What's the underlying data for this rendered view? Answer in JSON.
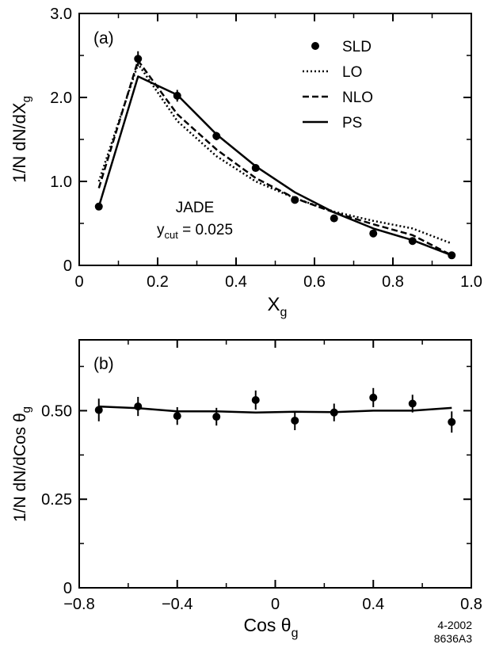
{
  "colors": {
    "ink": "#000000",
    "background": "#ffffff"
  },
  "footer": {
    "date_code": "4-2002",
    "figure_code": "8636A3"
  },
  "chart_data": [
    {
      "panel": "(a)",
      "type": "line",
      "xlabel_main": "X",
      "xlabel_sub": "g",
      "ylabel_main": "1/N dN/dX",
      "ylabel_sub": "g",
      "xlim": [
        0,
        1.0
      ],
      "ylim": [
        0,
        3.0
      ],
      "xticks": [
        0,
        0.2,
        0.4,
        0.6,
        0.8,
        1.0
      ],
      "xtick_labels": [
        "0",
        "0.2",
        "0.4",
        "0.6",
        "0.8",
        "1.0"
      ],
      "yticks": [
        0,
        1.0,
        2.0,
        3.0
      ],
      "ytick_labels": [
        "0",
        "1.0",
        "2.0",
        "3.0"
      ],
      "legend": [
        {
          "label": "SLD",
          "style": "marker"
        },
        {
          "label": "LO",
          "style": "dotted"
        },
        {
          "label": "NLO",
          "style": "dashed"
        },
        {
          "label": "PS",
          "style": "solid"
        }
      ],
      "annotation": {
        "line1": "JADE",
        "line2_main": "y",
        "line2_sub": "cut",
        "line2_rest": " = 0.025"
      },
      "points": {
        "name": "SLD",
        "x": [
          0.05,
          0.15,
          0.25,
          0.35,
          0.45,
          0.55,
          0.65,
          0.75,
          0.85,
          0.95
        ],
        "y": [
          0.7,
          2.46,
          2.02,
          1.54,
          1.16,
          0.78,
          0.56,
          0.38,
          0.29,
          0.12
        ],
        "err": [
          0.04,
          0.09,
          0.07,
          0.05,
          0.04,
          0.03,
          0.03,
          0.03,
          0.03,
          0.02
        ]
      },
      "series": [
        {
          "name": "LO",
          "style": "dotted",
          "x": [
            0.05,
            0.15,
            0.25,
            0.35,
            0.45,
            0.55,
            0.65,
            0.75,
            0.85,
            0.95
          ],
          "y": [
            1.0,
            2.4,
            1.72,
            1.3,
            1.0,
            0.8,
            0.64,
            0.53,
            0.44,
            0.26
          ]
        },
        {
          "name": "NLO",
          "style": "dashed",
          "x": [
            0.05,
            0.15,
            0.25,
            0.35,
            0.45,
            0.55,
            0.65,
            0.75,
            0.85,
            0.95
          ],
          "y": [
            0.92,
            2.44,
            1.8,
            1.38,
            1.04,
            0.8,
            0.63,
            0.49,
            0.36,
            0.12
          ]
        },
        {
          "name": "PS",
          "style": "solid",
          "x": [
            0.05,
            0.15,
            0.25,
            0.35,
            0.45,
            0.55,
            0.65,
            0.75,
            0.85,
            0.95
          ],
          "y": [
            0.7,
            2.25,
            2.03,
            1.56,
            1.18,
            0.87,
            0.63,
            0.44,
            0.3,
            0.12
          ]
        }
      ]
    },
    {
      "panel": "(b)",
      "type": "line",
      "xlabel_main": "Cos θ",
      "xlabel_sub": "g",
      "ylabel_main": "1/N dN/dCos θ",
      "ylabel_sub": "g",
      "xlim": [
        -0.8,
        0.8
      ],
      "ylim": [
        0,
        0.7
      ],
      "xticks": [
        -0.8,
        -0.4,
        0,
        0.4,
        0.8
      ],
      "xtick_labels": [
        "−0.8",
        "−0.4",
        "0",
        "0.4",
        "0.8"
      ],
      "yticks": [
        0,
        0.25,
        0.5
      ],
      "ytick_labels": [
        "0",
        "0.25",
        "0.50"
      ],
      "points": {
        "name": "SLD",
        "x": [
          -0.72,
          -0.56,
          -0.4,
          -0.24,
          -0.08,
          0.08,
          0.24,
          0.4,
          0.56,
          0.72
        ],
        "y": [
          0.502,
          0.512,
          0.485,
          0.483,
          0.53,
          0.472,
          0.495,
          0.537,
          0.52,
          0.468
        ],
        "err": [
          0.032,
          0.027,
          0.025,
          0.025,
          0.027,
          0.027,
          0.025,
          0.027,
          0.025,
          0.03
        ]
      },
      "series": [
        {
          "name": "PS",
          "style": "solid",
          "x": [
            -0.72,
            -0.56,
            -0.4,
            -0.24,
            -0.08,
            0.08,
            0.24,
            0.4,
            0.56,
            0.72
          ],
          "y": [
            0.512,
            0.507,
            0.498,
            0.498,
            0.495,
            0.497,
            0.496,
            0.5,
            0.5,
            0.508
          ]
        }
      ]
    }
  ]
}
